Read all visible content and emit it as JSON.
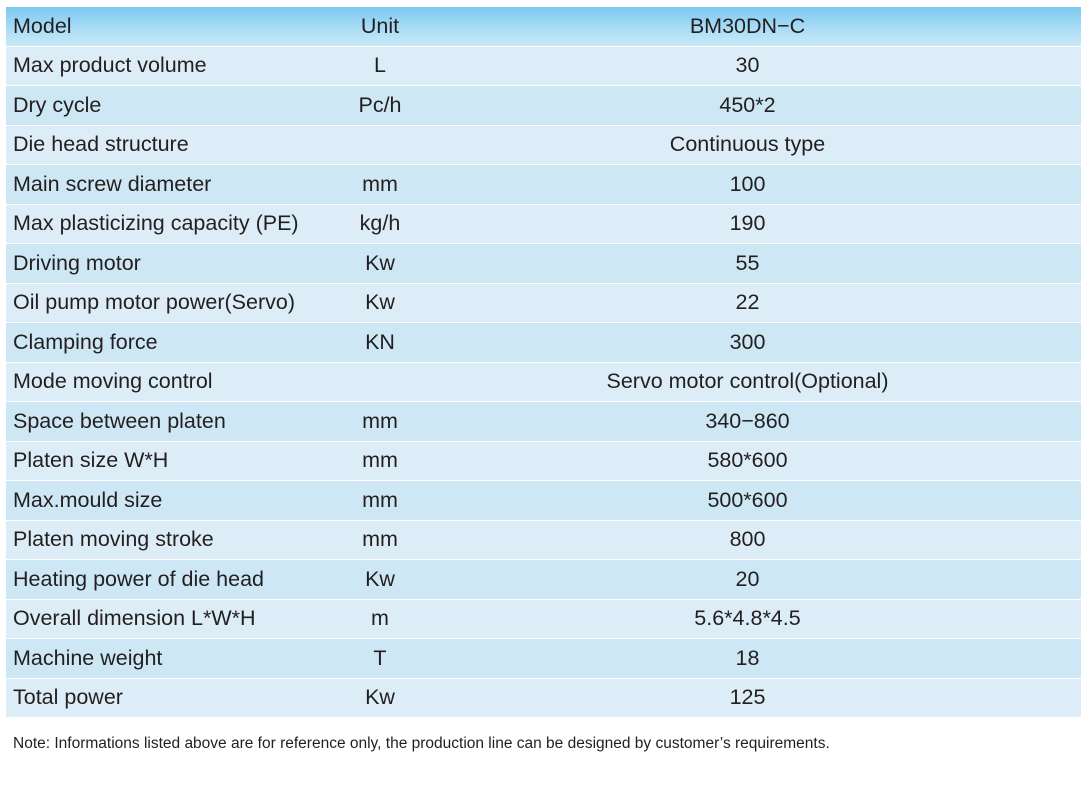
{
  "table": {
    "header": {
      "parameter": "Model",
      "unit": "Unit",
      "value": "BM30DN−C"
    },
    "rows": [
      {
        "parameter": "Max product volume",
        "unit": "L",
        "value": "30"
      },
      {
        "parameter": "Dry cycle",
        "unit": "Pc/h",
        "value": "450*2"
      },
      {
        "parameter": "Die head structure",
        "unit": "",
        "value": "Continuous type"
      },
      {
        "parameter": "Main screw diameter",
        "unit": "mm",
        "value": "100"
      },
      {
        "parameter": "Max plasticizing capacity (PE)",
        "unit": "kg/h",
        "value": "190"
      },
      {
        "parameter": "Driving motor",
        "unit": "Kw",
        "value": "55"
      },
      {
        "parameter": "Oil pump motor power(Servo)",
        "unit": "Kw",
        "value": "22"
      },
      {
        "parameter": "Clamping force",
        "unit": "KN",
        "value": "300"
      },
      {
        "parameter": "Mode moving control",
        "unit": "",
        "value": "Servo motor control(Optional)"
      },
      {
        "parameter": "Space between platen",
        "unit": "mm",
        "value": "340−860"
      },
      {
        "parameter": "Platen size  W*H",
        "unit": "mm",
        "value": "580*600"
      },
      {
        "parameter": "Max.mould size",
        "unit": "mm",
        "value": "500*600"
      },
      {
        "parameter": "Platen moving stroke",
        "unit": "mm",
        "value": "800"
      },
      {
        "parameter": "Heating power of die head",
        "unit": "Kw",
        "value": "20"
      },
      {
        "parameter": "Overall dimension L*W*H",
        "unit": "m",
        "value": "5.6*4.8*4.5"
      },
      {
        "parameter": "Machine weight",
        "unit": "T",
        "value": "18"
      },
      {
        "parameter": "Total power",
        "unit": "Kw",
        "value": "125"
      }
    ]
  },
  "note": "Note: Informations listed above are for reference only, the production line can be designed by customer’s requirements."
}
